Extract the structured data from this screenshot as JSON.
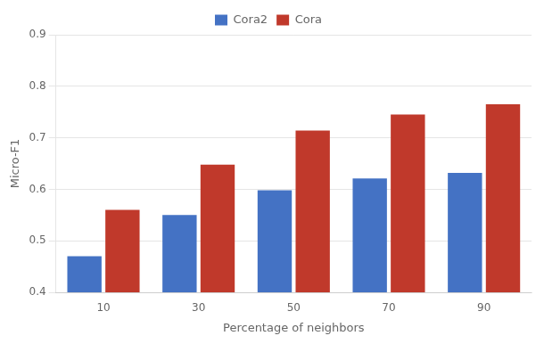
{
  "chart_data": {
    "type": "bar",
    "xlabel": "Percentage of neighbors",
    "ylabel": "Micro-F1",
    "categories": [
      "10",
      "30",
      "50",
      "70",
      "90"
    ],
    "series": [
      {
        "name": "Cora2",
        "color": "#4472C4",
        "values": [
          0.47,
          0.55,
          0.598,
          0.621,
          0.632
        ]
      },
      {
        "name": "Cora",
        "color": "#C0392B",
        "values": [
          0.56,
          0.648,
          0.714,
          0.745,
          0.765
        ]
      }
    ],
    "ylim": [
      0.4,
      0.9
    ],
    "yticks": [
      0.4,
      0.5,
      0.6,
      0.7,
      0.8,
      0.9
    ],
    "grid": true,
    "legend": "top"
  }
}
